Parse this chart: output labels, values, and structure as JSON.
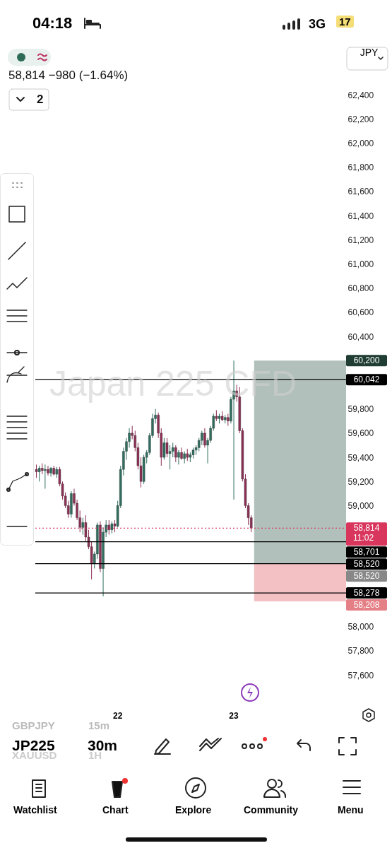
{
  "chart_data": {
    "type": "candlestick",
    "title": "Japan 225 CFD",
    "subtitle": "58,814 −980 (−1.64%)",
    "ylabel": "JPY",
    "categories": [
      null,
      null,
      null,
      null,
      null,
      null,
      null,
      null,
      null,
      null,
      null,
      null,
      null,
      null,
      null,
      null,
      null,
      null,
      null,
      null,
      null,
      null,
      null,
      null,
      null,
      null,
      null,
      null,
      "22",
      null,
      null,
      null,
      null,
      null,
      null,
      null,
      null,
      null,
      null,
      null,
      null,
      null,
      null,
      null,
      null,
      null,
      null,
      null,
      null,
      null,
      null,
      null,
      null,
      null,
      null,
      null,
      null,
      null,
      null,
      null,
      null,
      null,
      null,
      null,
      null,
      null,
      null,
      null,
      "23",
      null,
      null,
      null,
      null,
      null,
      null,
      null,
      null,
      null,
      null,
      null,
      null,
      null,
      null,
      null,
      null,
      null,
      null,
      null,
      null,
      null,
      null,
      null,
      null,
      null,
      null,
      null,
      null,
      null,
      null,
      null
    ],
    "ohlc": [
      [
        59300,
        59340,
        59230,
        59280
      ],
      [
        59280,
        59330,
        59200,
        59310
      ],
      [
        59310,
        59350,
        59260,
        59290
      ],
      [
        59290,
        59340,
        59140,
        59300
      ],
      [
        59300,
        59330,
        59250,
        59270
      ],
      [
        59270,
        59320,
        59240,
        59310
      ],
      [
        59310,
        59330,
        59250,
        59260
      ],
      [
        59260,
        59320,
        59230,
        59300
      ],
      [
        59300,
        59320,
        59160,
        59180
      ],
      [
        59180,
        59200,
        59050,
        59080
      ],
      [
        59080,
        59110,
        58980,
        59000
      ],
      [
        59000,
        59040,
        58900,
        58930
      ],
      [
        58930,
        59120,
        58900,
        59100
      ],
      [
        59100,
        59140,
        59000,
        59020
      ],
      [
        59020,
        59050,
        58880,
        58900
      ],
      [
        58900,
        58960,
        58780,
        58820
      ],
      [
        58820,
        58900,
        58760,
        58860
      ],
      [
        58860,
        58920,
        58700,
        58740
      ],
      [
        58740,
        58800,
        58640,
        58660
      ],
      [
        58660,
        58700,
        58390,
        58520
      ],
      [
        58520,
        58620,
        58480,
        58600
      ],
      [
        58600,
        58860,
        58560,
        58840
      ],
      [
        58840,
        58870,
        58450,
        58480
      ],
      [
        58480,
        58820,
        58250,
        58780
      ],
      [
        58780,
        58880,
        58740,
        58840
      ],
      [
        58840,
        58880,
        58760,
        58800
      ],
      [
        58800,
        58870,
        58770,
        58850
      ],
      [
        58850,
        58880,
        58780,
        58830
      ],
      [
        58830,
        59040,
        58820,
        59000
      ],
      [
        59000,
        59330,
        58980,
        59300
      ],
      [
        59300,
        59480,
        59250,
        59450
      ],
      [
        59450,
        59560,
        59380,
        59530
      ],
      [
        59530,
        59640,
        59480,
        59600
      ],
      [
        59600,
        59660,
        59550,
        59580
      ],
      [
        59580,
        59620,
        59450,
        59480
      ],
      [
        59480,
        59520,
        59300,
        59330
      ],
      [
        59330,
        59400,
        59150,
        59200
      ],
      [
        59200,
        59420,
        59180,
        59400
      ],
      [
        59400,
        59460,
        59350,
        59440
      ],
      [
        59440,
        59600,
        59420,
        59580
      ],
      [
        59580,
        59760,
        59560,
        59720
      ],
      [
        59720,
        59800,
        59680,
        59750
      ],
      [
        59750,
        59770,
        59560,
        59600
      ],
      [
        59600,
        59640,
        59330,
        59400
      ],
      [
        59400,
        59560,
        59380,
        59520
      ],
      [
        59520,
        59560,
        59400,
        59430
      ],
      [
        59430,
        59500,
        59300,
        59450
      ],
      [
        59450,
        59520,
        59400,
        59480
      ],
      [
        59480,
        59500,
        59360,
        59400
      ],
      [
        59400,
        59460,
        59340,
        59440
      ],
      [
        59440,
        59480,
        59380,
        59390
      ],
      [
        59390,
        59450,
        59350,
        59430
      ],
      [
        59430,
        59470,
        59370,
        59400
      ],
      [
        59400,
        59440,
        59360,
        59420
      ],
      [
        59420,
        59480,
        59390,
        59460
      ],
      [
        59460,
        59500,
        59420,
        59480
      ],
      [
        59480,
        59560,
        59450,
        59540
      ],
      [
        59540,
        59620,
        59500,
        59600
      ],
      [
        59600,
        59640,
        59480,
        59500
      ],
      [
        59500,
        59560,
        59350,
        59540
      ],
      [
        59540,
        59660,
        59520,
        59640
      ],
      [
        59640,
        59760,
        59620,
        59740
      ],
      [
        59740,
        59790,
        59700,
        59720
      ],
      [
        59720,
        59760,
        59680,
        59740
      ],
      [
        59740,
        59780,
        59700,
        59710
      ],
      [
        59710,
        59750,
        59680,
        59730
      ],
      [
        59730,
        59760,
        59660,
        59700
      ],
      [
        59700,
        59900,
        59680,
        59880
      ],
      [
        59880,
        60200,
        59050,
        59950
      ],
      [
        59950,
        60000,
        59860,
        59900
      ],
      [
        59900,
        59980,
        59600,
        59620
      ],
      [
        59620,
        59640,
        59200,
        59220
      ],
      [
        59220,
        59260,
        58980,
        59000
      ],
      [
        59000,
        59020,
        58840,
        58900
      ],
      [
        58900,
        58920,
        58780,
        58814
      ],
      null,
      null,
      null,
      null,
      null,
      null,
      null,
      null,
      null,
      null,
      null,
      null,
      null,
      null,
      null,
      null,
      null,
      null,
      null,
      null,
      null,
      null,
      null,
      null,
      null
    ],
    "ylim": [
      57600,
      62400
    ],
    "yticks": [
      {
        "value": 57600,
        "label": "57,600"
      },
      {
        "value": 57800,
        "label": "57,800"
      },
      {
        "value": 58000,
        "label": "58,000"
      },
      {
        "value": 59000,
        "label": "59,000"
      },
      {
        "value": 59200,
        "label": "59,200"
      },
      {
        "value": 59400,
        "label": "59,400"
      },
      {
        "value": 59600,
        "label": "59,600"
      },
      {
        "value": 59800,
        "label": "59,800"
      },
      {
        "value": 60400,
        "label": "60,400"
      },
      {
        "value": 60600,
        "label": "60,600"
      },
      {
        "value": 60800,
        "label": "60,800"
      },
      {
        "value": 61000,
        "label": "61,000"
      },
      {
        "value": 61200,
        "label": "61,200"
      },
      {
        "value": 61400,
        "label": "61,400"
      },
      {
        "value": 61600,
        "label": "61,600"
      },
      {
        "value": 61800,
        "label": "61,800"
      },
      {
        "value": 62000,
        "label": "62,000"
      },
      {
        "value": 62200,
        "label": "62,200"
      },
      {
        "value": 62400,
        "label": "62,400"
      }
    ],
    "ref_lines": [
      {
        "axis": "y",
        "value": 60042,
        "label": "60,042",
        "color": "#000000"
      },
      {
        "axis": "y",
        "value": 58814,
        "label": "58,814",
        "color": "#d9365e",
        "line_style": "dotted"
      },
      {
        "axis": "y",
        "value": 58701,
        "label": "58,701",
        "color": "#000000"
      },
      {
        "axis": "y",
        "value": 58520,
        "label": "58,520",
        "color": "#000000"
      },
      {
        "axis": "y",
        "value": 58278,
        "label": "58,278",
        "color": "#000000"
      }
    ],
    "bands": [
      {
        "axis": "y",
        "from": 58520,
        "to": 60200,
        "label": "60,200",
        "color": "#a9b9b3"
      },
      {
        "axis": "y",
        "from": 58208,
        "to": 58520,
        "label": "58,208",
        "color": "#f2b9bc"
      }
    ],
    "annotations": [
      "11:02",
      "04:18",
      "3G",
      "17",
      "2",
      "GBPJPY",
      "15m",
      "XAUUSD",
      "1H",
      "JP225",
      "30m",
      "Watchlist",
      "Chart",
      "Explore",
      "Community",
      "Menu",
      "58,520"
    ]
  }
}
